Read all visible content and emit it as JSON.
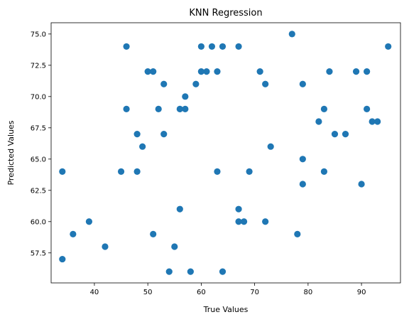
{
  "chart_data": {
    "type": "scatter",
    "title": "KNN Regression",
    "xlabel": "True Values",
    "ylabel": "Predicted Values",
    "xlim": [
      31.9,
      97.3
    ],
    "ylim": [
      55.1,
      75.9
    ],
    "xticks": [
      40,
      50,
      60,
      70,
      80,
      90
    ],
    "xtick_labels": [
      "40",
      "50",
      "60",
      "70",
      "80",
      "90"
    ],
    "yticks": [
      57.5,
      60.0,
      62.5,
      65.0,
      67.5,
      70.0,
      72.5,
      75.0
    ],
    "ytick_labels": [
      "57.5",
      "60.0",
      "62.5",
      "65.0",
      "67.5",
      "70.0",
      "72.5",
      "75.0"
    ],
    "grid": false,
    "marker_color": "#1f77b4",
    "series": [
      {
        "points": [
          [
            34,
            64
          ],
          [
            34,
            57
          ],
          [
            36,
            59
          ],
          [
            39,
            60
          ],
          [
            42,
            58
          ],
          [
            45,
            64
          ],
          [
            46,
            74
          ],
          [
            46,
            69
          ],
          [
            48,
            67
          ],
          [
            48,
            64
          ],
          [
            49,
            66
          ],
          [
            50,
            72
          ],
          [
            51,
            72
          ],
          [
            51,
            59
          ],
          [
            52,
            69
          ],
          [
            53,
            71
          ],
          [
            53,
            67
          ],
          [
            54,
            56
          ],
          [
            55,
            58
          ],
          [
            56,
            69
          ],
          [
            56,
            61
          ],
          [
            57,
            70
          ],
          [
            57,
            69
          ],
          [
            58,
            56
          ],
          [
            59,
            71
          ],
          [
            60,
            74
          ],
          [
            60,
            72
          ],
          [
            61,
            72
          ],
          [
            62,
            74
          ],
          [
            63,
            72
          ],
          [
            63,
            64
          ],
          [
            64,
            74
          ],
          [
            64,
            56
          ],
          [
            67,
            74
          ],
          [
            67,
            61
          ],
          [
            67,
            60
          ],
          [
            68,
            60
          ],
          [
            69,
            64
          ],
          [
            71,
            72
          ],
          [
            72,
            71
          ],
          [
            72,
            60
          ],
          [
            73,
            66
          ],
          [
            77,
            75
          ],
          [
            78,
            59
          ],
          [
            79,
            71
          ],
          [
            79,
            65
          ],
          [
            79,
            63
          ],
          [
            82,
            68
          ],
          [
            83,
            69
          ],
          [
            83,
            64
          ],
          [
            84,
            72
          ],
          [
            85,
            67
          ],
          [
            87,
            67
          ],
          [
            89,
            72
          ],
          [
            90,
            63
          ],
          [
            91,
            72
          ],
          [
            91,
            69
          ],
          [
            92,
            68
          ],
          [
            93,
            68
          ],
          [
            95,
            74
          ]
        ]
      }
    ]
  }
}
